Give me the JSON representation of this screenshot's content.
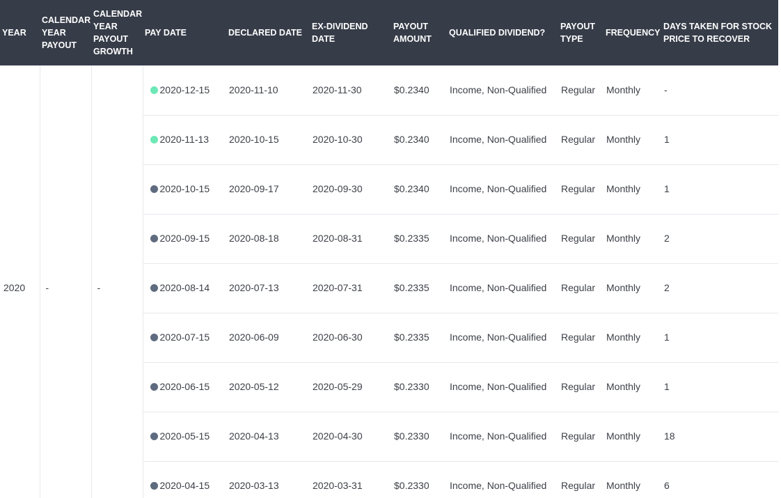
{
  "colors": {
    "header_bg": "#363c48",
    "dot_upcoming": "#6ee7b7",
    "dot_past": "#5f6b7f"
  },
  "headers": {
    "year": "YEAR",
    "calendar_year_payout": "CALENDAR YEAR PAYOUT",
    "calendar_year_payout_growth": "CALENDAR YEAR PAYOUT GROWTH",
    "pay_date": "PAY DATE",
    "declared_date": "DECLARED DATE",
    "ex_dividend_date": "EX-DIVIDEND DATE",
    "payout_amount": "PAYOUT AMOUNT",
    "qualified_dividend": "QUALIFIED DIVIDEND?",
    "payout_type": "PAYOUT TYPE",
    "frequency": "FREQUENCY",
    "days_to_recover": "DAYS TAKEN FOR STOCK PRICE TO RECOVER"
  },
  "group": {
    "year": "2020",
    "calendar_year_payout": "-",
    "calendar_year_payout_growth": "-"
  },
  "rows": [
    {
      "status": "upcoming",
      "pay_date": "2020-12-15",
      "declared_date": "2020-11-10",
      "ex_dividend_date": "2020-11-30",
      "payout_amount": "$0.2340",
      "qualified": "Income, Non-Qualified",
      "payout_type": "Regular",
      "frequency": "Monthly",
      "days_to_recover": "-"
    },
    {
      "status": "upcoming",
      "pay_date": "2020-11-13",
      "declared_date": "2020-10-15",
      "ex_dividend_date": "2020-10-30",
      "payout_amount": "$0.2340",
      "qualified": "Income, Non-Qualified",
      "payout_type": "Regular",
      "frequency": "Monthly",
      "days_to_recover": "1"
    },
    {
      "status": "past",
      "pay_date": "2020-10-15",
      "declared_date": "2020-09-17",
      "ex_dividend_date": "2020-09-30",
      "payout_amount": "$0.2340",
      "qualified": "Income, Non-Qualified",
      "payout_type": "Regular",
      "frequency": "Monthly",
      "days_to_recover": "1"
    },
    {
      "status": "past",
      "pay_date": "2020-09-15",
      "declared_date": "2020-08-18",
      "ex_dividend_date": "2020-08-31",
      "payout_amount": "$0.2335",
      "qualified": "Income, Non-Qualified",
      "payout_type": "Regular",
      "frequency": "Monthly",
      "days_to_recover": "2"
    },
    {
      "status": "past",
      "pay_date": "2020-08-14",
      "declared_date": "2020-07-13",
      "ex_dividend_date": "2020-07-31",
      "payout_amount": "$0.2335",
      "qualified": "Income, Non-Qualified",
      "payout_type": "Regular",
      "frequency": "Monthly",
      "days_to_recover": "2"
    },
    {
      "status": "past",
      "pay_date": "2020-07-15",
      "declared_date": "2020-06-09",
      "ex_dividend_date": "2020-06-30",
      "payout_amount": "$0.2335",
      "qualified": "Income, Non-Qualified",
      "payout_type": "Regular",
      "frequency": "Monthly",
      "days_to_recover": "1"
    },
    {
      "status": "past",
      "pay_date": "2020-06-15",
      "declared_date": "2020-05-12",
      "ex_dividend_date": "2020-05-29",
      "payout_amount": "$0.2330",
      "qualified": "Income, Non-Qualified",
      "payout_type": "Regular",
      "frequency": "Monthly",
      "days_to_recover": "1"
    },
    {
      "status": "past",
      "pay_date": "2020-05-15",
      "declared_date": "2020-04-13",
      "ex_dividend_date": "2020-04-30",
      "payout_amount": "$0.2330",
      "qualified": "Income, Non-Qualified",
      "payout_type": "Regular",
      "frequency": "Monthly",
      "days_to_recover": "18"
    },
    {
      "status": "past",
      "pay_date": "2020-04-15",
      "declared_date": "2020-03-13",
      "ex_dividend_date": "2020-03-31",
      "payout_amount": "$0.2330",
      "qualified": "Income, Non-Qualified",
      "payout_type": "Regular",
      "frequency": "Monthly",
      "days_to_recover": "6"
    }
  ]
}
